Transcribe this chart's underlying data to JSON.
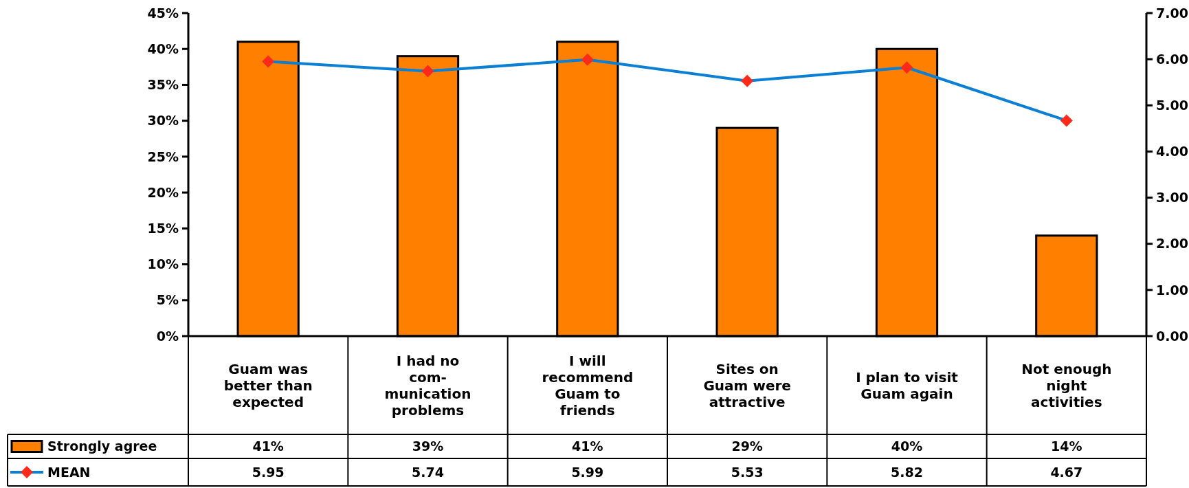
{
  "chart_data": {
    "type": "bar",
    "categories": [
      "Guam was\nbetter than\nexpected",
      "I had no\ncom-\nmunication\nproblems",
      "I will\nrecommend\nGuam to\nfriends",
      "Sites on\nGuam were\nattractive",
      "I plan to visit\nGuam again",
      "Not enough\nnight\nactivities"
    ],
    "series": [
      {
        "name": "Strongly agree",
        "color": "#ff8000",
        "values": [
          41,
          39,
          41,
          29,
          40,
          14
        ],
        "value_labels": [
          "41%",
          "39%",
          "41%",
          "29%",
          "40%",
          "14%"
        ]
      },
      {
        "name": "MEAN",
        "type": "line",
        "axis": "y2",
        "color": "#0a7fd4",
        "colors": [
          "#ff2a1a",
          "#ff2a1a",
          "#ff2a1a",
          "#ff2a1a",
          "#ff2a1a",
          "#ff2a1a"
        ],
        "marker": "diamond",
        "values": [
          5.95,
          5.74,
          5.99,
          5.53,
          5.82,
          4.67
        ],
        "value_labels": [
          "5.95",
          "5.74",
          "5.99",
          "5.53",
          "5.82",
          "4.67"
        ]
      }
    ],
    "ylim": [
      0,
      45
    ],
    "yticks": [
      {
        "value": 0,
        "label": "0%"
      },
      {
        "value": 5,
        "label": "5%"
      },
      {
        "value": 10,
        "label": "10%"
      },
      {
        "value": 15,
        "label": "15%"
      },
      {
        "value": 20,
        "label": "20%"
      },
      {
        "value": 25,
        "label": "25%"
      },
      {
        "value": 30,
        "label": "30%"
      },
      {
        "value": 35,
        "label": "35%"
      },
      {
        "value": 40,
        "label": "40%"
      },
      {
        "value": 45,
        "label": "45%"
      }
    ],
    "y2lim": [
      0,
      7
    ],
    "y2ticks": [
      {
        "value": 0,
        "label": "0.00"
      },
      {
        "value": 1,
        "label": "1.00"
      },
      {
        "value": 2,
        "label": "2.00"
      },
      {
        "value": 3,
        "label": "3.00"
      },
      {
        "value": 4,
        "label": "4.00"
      },
      {
        "value": 5,
        "label": "5.00"
      },
      {
        "value": 6,
        "label": "6.00"
      },
      {
        "value": 7,
        "label": "7.00"
      }
    ],
    "grid": false,
    "legend": "bottom left"
  }
}
